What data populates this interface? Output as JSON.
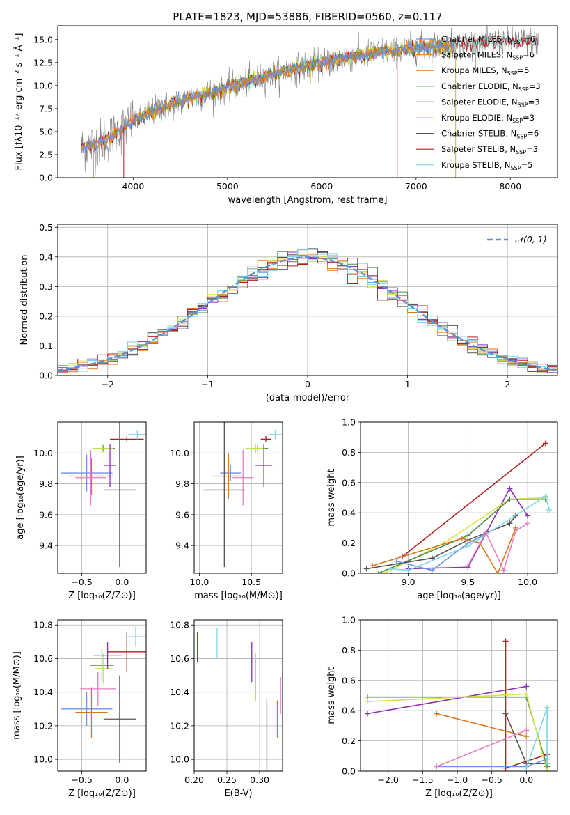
{
  "colors": {
    "chabrier_miles": "#6b93e8",
    "salpeter_miles": "#e8892d",
    "kroupa_miles": "#d9761a",
    "chabrier_elodie": "#4b8a4b",
    "salpeter_elodie": "#8b2fb3",
    "kroupa_elodie": "#dbe04a",
    "chabrier_stelib": "#555555",
    "salpeter_stelib": "#b41e1e",
    "kroupa_stelib": "#7fd6e3",
    "pink": "#e37fc0",
    "lime": "#b5e24a",
    "gaussian": "#5b8fd6",
    "grid": "#b0b0b0"
  },
  "chart_data": [
    {
      "id": "spectrum",
      "type": "line",
      "title": "PLATE=1823, MJD=53886, FIBERID=0560, z=0.117",
      "xlabel": "wavelength [Angstrom, rest frame]",
      "ylabel": "Flux [fλ10⁻¹⁷ erg cm⁻² s⁻¹ Å⁻¹]",
      "xlim": [
        3200,
        8500
      ],
      "ylim": [
        0,
        16.5
      ],
      "xticks": [
        4000,
        5000,
        6000,
        7000,
        8000
      ],
      "yticks": [
        0.0,
        2.5,
        5.0,
        7.5,
        10.0,
        12.5,
        15.0
      ],
      "legend_position": "upper-right",
      "series": [
        {
          "name": "Chabrier MILES, N",
          "sub": "SSP",
          "suffix": "=6",
          "color_key": "chabrier_miles"
        },
        {
          "name": "Salpeter MILES, N",
          "sub": "SSP",
          "suffix": "=6",
          "color_key": "salpeter_miles"
        },
        {
          "name": "Kroupa MILES, N",
          "sub": "SSP",
          "suffix": "=5",
          "color_key": "kroupa_miles"
        },
        {
          "name": "Chabrier ELODIE, N",
          "sub": "SSP",
          "suffix": "=3",
          "color_key": "chabrier_elodie"
        },
        {
          "name": "Salpeter ELODIE, N",
          "sub": "SSP",
          "suffix": "=3",
          "color_key": "salpeter_elodie"
        },
        {
          "name": "Kroupa ELODIE, N",
          "sub": "SSP",
          "suffix": "=3",
          "color_key": "kroupa_elodie"
        },
        {
          "name": "Chabrier STELIB, N",
          "sub": "SSP",
          "suffix": "=6",
          "color_key": "chabrier_stelib"
        },
        {
          "name": "Salpeter STELIB, N",
          "sub": "SSP",
          "suffix": "=3",
          "color_key": "salpeter_stelib"
        },
        {
          "name": "Kroupa STELIB, N",
          "sub": "SSP",
          "suffix": "=5",
          "color_key": "kroupa_stelib"
        }
      ],
      "continuum": {
        "x": [
          3450,
          3600,
          3800,
          4000,
          4300,
          4600,
          5000,
          5400,
          5800,
          6200,
          6600,
          7000,
          7400,
          7800,
          8200
        ],
        "y": [
          3.2,
          3.6,
          4.6,
          6.2,
          7.6,
          8.6,
          9.8,
          11.0,
          12.0,
          12.9,
          13.6,
          14.1,
          14.4,
          14.7,
          14.8
        ]
      },
      "dips": [
        {
          "x": 3580,
          "y": 0.0
        },
        {
          "x": 3900,
          "y": 0.0
        },
        {
          "x": 5880,
          "y": 10.2
        },
        {
          "x": 6800,
          "y": 0.0
        },
        {
          "x": 7420,
          "y": 0.0
        }
      ]
    },
    {
      "id": "residuals",
      "type": "step",
      "xlabel": "(data-model)/error",
      "ylabel": "Normed distribution",
      "xlim": [
        -2.5,
        2.5
      ],
      "ylim": [
        0,
        0.51
      ],
      "xticks": [
        -2,
        -1,
        0,
        1,
        2
      ],
      "xticklabels": [
        "−2",
        "−1",
        "0",
        "1",
        "2"
      ],
      "yticks": [
        0.0,
        0.1,
        0.2,
        0.3,
        0.4,
        0.5
      ],
      "bin_width": 0.1,
      "gaussian": {
        "name": "𝒩(0, 1)",
        "mean": 0,
        "sigma": 1
      },
      "legend_position": "upper-right"
    },
    {
      "id": "age_vs_Z",
      "type": "errorbar",
      "xlabel": "Z [log₁₀(Z/Z⊙)]",
      "ylabel": "age  [log₁₀(age/yr)]",
      "xlim": [
        -0.8,
        0.3
      ],
      "ylim": [
        9.22,
        10.2
      ],
      "xticks": [
        -0.5,
        0.0
      ],
      "xticklabels": [
        "−0.5",
        "0.0"
      ],
      "yticks": [
        9.4,
        9.6,
        9.8,
        10.0
      ],
      "points": [
        {
          "color_key": "chabrier_miles",
          "x": -0.44,
          "xerr": 0.32,
          "y": 9.87,
          "yerr": 0.12
        },
        {
          "color_key": "kroupa_miles",
          "x": -0.38,
          "xerr": 0.28,
          "y": 9.85,
          "yerr": 0.12
        },
        {
          "color_key": "pink",
          "x": -0.39,
          "xerr": 0.19,
          "y": 9.84,
          "yerr": 0.18
        },
        {
          "color_key": "chabrier_elodie",
          "x": -0.23,
          "xerr": 0.14,
          "y": 10.03,
          "yerr": 0.02
        },
        {
          "color_key": "lime",
          "x": -0.24,
          "xerr": 0.13,
          "y": 10.03,
          "yerr": 0.03
        },
        {
          "color_key": "salpeter_elodie",
          "x": -0.15,
          "xerr": 0.08,
          "y": 9.92,
          "yerr": 0.14
        },
        {
          "color_key": "salpeter_stelib",
          "x": 0.06,
          "xerr": 0.21,
          "y": 10.09,
          "yerr": 0.02
        },
        {
          "color_key": "kroupa_stelib",
          "x": 0.19,
          "xerr": 0.11,
          "y": 10.12,
          "yerr": 0.03
        },
        {
          "color_key": "chabrier_stelib",
          "x": -0.03,
          "xerr": 0.2,
          "y": 9.76,
          "yerr": 0.5
        }
      ]
    },
    {
      "id": "age_vs_mass",
      "type": "errorbar",
      "xlabel": "mass [log₁₀(M/M⊙)]",
      "ylabel": "",
      "xlim": [
        9.95,
        10.8
      ],
      "ylim": [
        9.22,
        10.2
      ],
      "xticks": [
        10.0,
        10.5
      ],
      "xticklabels": [
        "10.0",
        "10.5"
      ],
      "yticks": [
        9.4,
        9.6,
        9.8,
        10.0
      ],
      "points": [
        {
          "color_key": "chabrier_miles",
          "x": 10.3,
          "xerr": 0.1,
          "y": 9.87,
          "yerr": 0.05
        },
        {
          "color_key": "kroupa_miles",
          "x": 10.28,
          "xerr": 0.15,
          "y": 9.85,
          "yerr": 0.15
        },
        {
          "color_key": "pink",
          "x": 10.42,
          "xerr": 0.1,
          "y": 9.84,
          "yerr": 0.18
        },
        {
          "color_key": "chabrier_elodie",
          "x": 10.56,
          "xerr": 0.1,
          "y": 10.03,
          "yerr": 0.02
        },
        {
          "color_key": "lime",
          "x": 10.54,
          "xerr": 0.09,
          "y": 10.03,
          "yerr": 0.03
        },
        {
          "color_key": "salpeter_elodie",
          "x": 10.62,
          "xerr": 0.08,
          "y": 9.92,
          "yerr": 0.14
        },
        {
          "color_key": "salpeter_stelib",
          "x": 10.64,
          "xerr": 0.05,
          "y": 10.09,
          "yerr": 0.02
        },
        {
          "color_key": "kroupa_stelib",
          "x": 10.73,
          "xerr": 0.06,
          "y": 10.12,
          "yerr": 0.03
        },
        {
          "color_key": "chabrier_stelib",
          "x": 10.24,
          "xerr": 0.2,
          "y": 9.76,
          "yerr": 0.5
        }
      ]
    },
    {
      "id": "weight_vs_age",
      "type": "line",
      "xlabel": "age  [log₁₀(age/yr)]",
      "ylabel": "mass weight",
      "xlim": [
        8.6,
        10.25
      ],
      "ylim": [
        0,
        1.0
      ],
      "xticks": [
        9.0,
        9.5,
        10.0
      ],
      "xticklabels": [
        "9.0",
        "9.5",
        "10.0"
      ],
      "yticks": [
        0.0,
        0.2,
        0.4,
        0.6,
        0.8,
        1.0
      ],
      "series": [
        {
          "color_key": "salpeter_stelib",
          "x": [
            8.95,
            10.15
          ],
          "y": [
            0.11,
            0.86
          ]
        },
        {
          "color_key": "salpeter_elodie",
          "x": [
            9.0,
            9.5,
            9.85,
            10.0
          ],
          "y": [
            0.03,
            0.04,
            0.56,
            0.38
          ]
        },
        {
          "color_key": "kroupa_elodie",
          "x": [
            8.8,
            9.3,
            9.85,
            10.15
          ],
          "y": [
            0.0,
            0.2,
            0.49,
            0.5
          ]
        },
        {
          "color_key": "chabrier_elodie",
          "x": [
            8.75,
            9.5,
            9.85,
            10.15
          ],
          "y": [
            0.0,
            0.25,
            0.49,
            0.49
          ]
        },
        {
          "color_key": "chabrier_stelib",
          "x": [
            8.65,
            9.2,
            9.5,
            9.85,
            9.9
          ],
          "y": [
            0.03,
            0.1,
            0.22,
            0.33,
            0.38
          ]
        },
        {
          "color_key": "kroupa_miles",
          "x": [
            8.7,
            9.45,
            9.6,
            9.75,
            9.9
          ],
          "y": [
            0.05,
            0.23,
            0.2,
            0.0,
            0.3
          ]
        },
        {
          "color_key": "chabrier_miles",
          "x": [
            8.9,
            9.2,
            9.5,
            9.65
          ],
          "y": [
            0.08,
            0.02,
            0.2,
            0.26
          ]
        },
        {
          "color_key": "kroupa_stelib",
          "x": [
            8.85,
            9.0,
            9.5,
            10.15,
            10.18
          ],
          "y": [
            0.03,
            0.02,
            0.18,
            0.51,
            0.42
          ]
        },
        {
          "color_key": "pink",
          "x": [
            9.5,
            9.65,
            9.8,
            9.9,
            10.0
          ],
          "y": [
            0.05,
            0.27,
            0.02,
            0.28,
            0.33
          ]
        }
      ]
    },
    {
      "id": "mass_vs_Z",
      "type": "errorbar",
      "xlabel": "Z [log₁₀(Z/Z⊙)]",
      "ylabel": "mass [log₁₀(M/M⊙)]",
      "xlim": [
        -0.8,
        0.3
      ],
      "ylim": [
        9.93,
        10.83
      ],
      "xticks": [
        -0.5,
        0.0
      ],
      "xticklabels": [
        "−0.5",
        "0.0"
      ],
      "yticks": [
        10.0,
        10.2,
        10.4,
        10.6,
        10.8
      ],
      "points": [
        {
          "color_key": "chabrier_miles",
          "x": -0.44,
          "xerr": 0.32,
          "y": 10.3,
          "yerr": 0.1
        },
        {
          "color_key": "kroupa_miles",
          "x": -0.38,
          "xerr": 0.2,
          "y": 10.28,
          "yerr": 0.15
        },
        {
          "color_key": "pink",
          "x": -0.3,
          "xerr": 0.22,
          "y": 10.42,
          "yerr": 0.1
        },
        {
          "color_key": "chabrier_elodie",
          "x": -0.25,
          "xerr": 0.15,
          "y": 10.56,
          "yerr": 0.1
        },
        {
          "color_key": "lime",
          "x": -0.23,
          "xerr": 0.1,
          "y": 10.54,
          "yerr": 0.09
        },
        {
          "color_key": "salpeter_elodie",
          "x": -0.18,
          "xerr": 0.18,
          "y": 10.62,
          "yerr": 0.08
        },
        {
          "color_key": "salpeter_stelib",
          "x": 0.06,
          "xerr": 0.24,
          "y": 10.64,
          "yerr": 0.12
        },
        {
          "color_key": "kroupa_stelib",
          "x": 0.17,
          "xerr": 0.14,
          "y": 10.73,
          "yerr": 0.06
        },
        {
          "color_key": "chabrier_stelib",
          "x": -0.03,
          "xerr": 0.2,
          "y": 10.24,
          "yerr": 0.26
        }
      ]
    },
    {
      "id": "mass_vs_ebv",
      "type": "errorbar",
      "xlabel": "E(B-V)",
      "ylabel": "",
      "xlim": [
        0.2,
        0.335
      ],
      "ylim": [
        9.93,
        10.83
      ],
      "xticks": [
        0.2,
        0.25,
        0.3
      ],
      "xticklabels": [
        "0.20",
        "0.25",
        "0.30"
      ],
      "yticks": [
        10.0,
        10.2,
        10.4,
        10.6,
        10.8
      ],
      "points": [
        {
          "color_key": "salpeter_stelib",
          "x": 0.205,
          "xerr": 0.0,
          "y": 10.67,
          "yerr": 0.09
        },
        {
          "color_key": "kroupa_stelib",
          "x": 0.235,
          "xerr": 0.0,
          "y": 10.69,
          "yerr": 0.09
        },
        {
          "color_key": "salpeter_elodie",
          "x": 0.288,
          "xerr": 0.0,
          "y": 10.58,
          "yerr": 0.12
        },
        {
          "color_key": "lime",
          "x": 0.294,
          "xerr": 0.0,
          "y": 10.49,
          "yerr": 0.14
        },
        {
          "color_key": "chabrier_stelib",
          "x": 0.311,
          "xerr": 0.0,
          "y": 10.11,
          "yerr": 0.25
        },
        {
          "color_key": "kroupa_miles",
          "x": 0.327,
          "xerr": 0.0,
          "y": 10.24,
          "yerr": 0.11
        },
        {
          "color_key": "pink",
          "x": 0.332,
          "xerr": 0.0,
          "y": 10.38,
          "yerr": 0.11
        }
      ]
    },
    {
      "id": "weight_vs_Z",
      "type": "line",
      "xlabel": "Z [log₁₀(Z/Z⊙)]",
      "ylabel": "mass weight",
      "xlim": [
        -2.4,
        0.45
      ],
      "ylim": [
        0,
        1.0
      ],
      "xticks": [
        -2.0,
        -1.5,
        -1.0,
        -0.5,
        0.0
      ],
      "xticklabels": [
        "−2.0",
        "−1.5",
        "−1.0",
        "−0.5",
        "0.0"
      ],
      "yticks": [
        0.0,
        0.2,
        0.4,
        0.6,
        0.8,
        1.0
      ],
      "series": [
        {
          "color_key": "salpeter_stelib",
          "x": [
            -0.3,
            -0.3,
            0.3
          ],
          "y": [
            0.86,
            0.02,
            0.11
          ]
        },
        {
          "color_key": "salpeter_elodie",
          "x": [
            -2.3,
            0.0
          ],
          "y": [
            0.38,
            0.56
          ]
        },
        {
          "color_key": "chabrier_elodie",
          "x": [
            -2.3,
            0.0,
            0.3
          ],
          "y": [
            0.49,
            0.49,
            0.03
          ]
        },
        {
          "color_key": "kroupa_elodie",
          "x": [
            -2.3,
            0.0,
            0.3
          ],
          "y": [
            0.46,
            0.51,
            0.0
          ]
        },
        {
          "color_key": "kroupa_miles",
          "x": [
            -1.3,
            0.0
          ],
          "y": [
            0.38,
            0.23
          ]
        },
        {
          "color_key": "chabrier_stelib",
          "x": [
            -0.3,
            0.0,
            0.3
          ],
          "y": [
            0.38,
            0.05,
            0.05
          ]
        },
        {
          "color_key": "chabrier_miles",
          "x": [
            -1.3,
            0.0,
            0.3
          ],
          "y": [
            0.03,
            0.03,
            0.08
          ]
        },
        {
          "color_key": "pink",
          "x": [
            -1.3,
            0.0
          ],
          "y": [
            0.03,
            0.27
          ]
        },
        {
          "color_key": "kroupa_stelib",
          "x": [
            0.0,
            0.3,
            0.3
          ],
          "y": [
            0.02,
            0.42,
            0.05
          ]
        }
      ]
    }
  ]
}
